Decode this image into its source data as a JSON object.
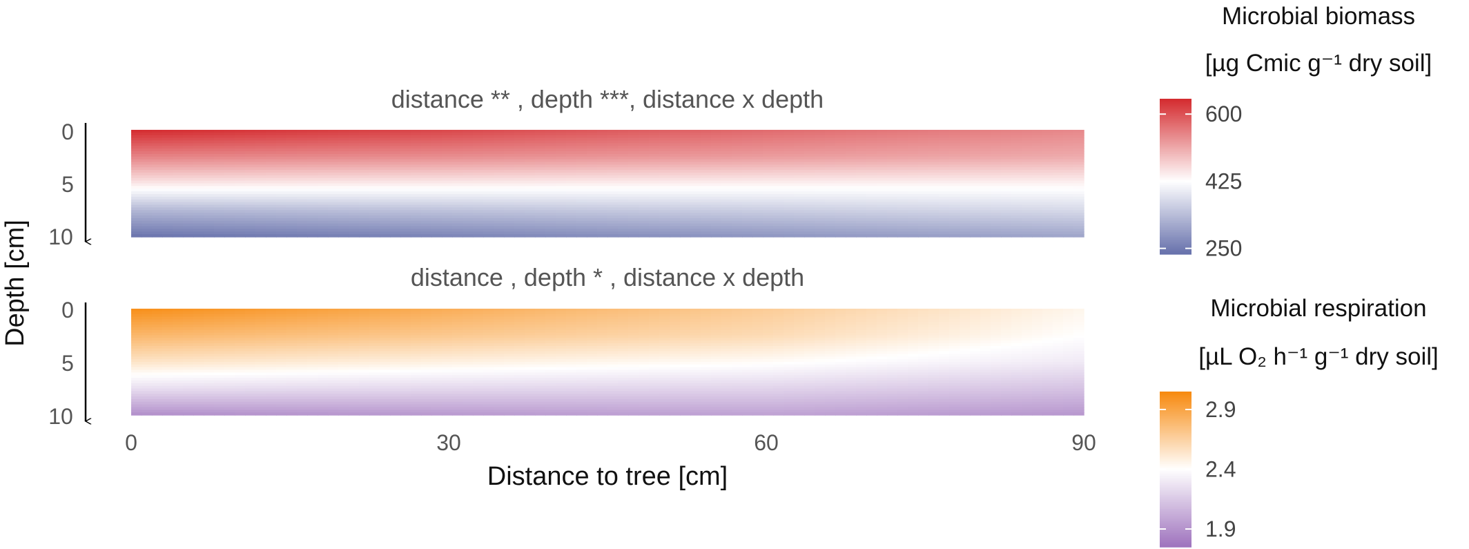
{
  "chart_data": [
    {
      "type": "heatmap",
      "title": "distance ** , depth ***, distance x depth",
      "xlabel": "Distance to tree [cm]",
      "ylabel": "Depth [cm]",
      "xlim": [
        0,
        90
      ],
      "ylim": [
        0,
        10
      ],
      "y_reversed": true,
      "x_ticks": [
        0,
        30,
        60,
        90
      ],
      "y_ticks": [
        0,
        5,
        10
      ],
      "z_name": "Microbial biomass",
      "z_unit": "[µg Cmic g⁻¹ dry soil]",
      "z_ticks": [
        250,
        425,
        600
      ],
      "z_range": [
        235,
        640
      ],
      "colors": {
        "low": "#6670ab",
        "mid": "#ffffff",
        "high": "#d42a2e"
      },
      "surface": {
        "x": [
          0,
          30,
          60,
          90
        ],
        "depth": [
          0,
          2.5,
          5,
          7.5,
          10
        ],
        "z": [
          [
            640,
            550,
            450,
            330,
            240
          ],
          [
            610,
            540,
            445,
            345,
            262
          ],
          [
            575,
            525,
            440,
            360,
            285
          ],
          [
            545,
            510,
            438,
            375,
            305
          ]
        ]
      }
    },
    {
      "type": "heatmap",
      "title": "distance    , depth *   , distance x depth",
      "xlabel": "Distance to tree [cm]",
      "ylabel": "Depth [cm]",
      "xlim": [
        0,
        90
      ],
      "ylim": [
        0,
        10
      ],
      "y_reversed": true,
      "x_ticks": [
        0,
        30,
        60,
        90
      ],
      "y_ticks": [
        0,
        5,
        10
      ],
      "z_name": "Microbial respiration",
      "z_unit": "[µL O₂ h⁻¹ g⁻¹ dry soil]",
      "z_ticks": [
        1.9,
        2.4,
        2.9
      ],
      "z_range": [
        1.75,
        3.05
      ],
      "colors": {
        "low": "#9e72bd",
        "mid": "#ffffff",
        "high": "#f7890d"
      },
      "surface": {
        "x": [
          0,
          30,
          60,
          90
        ],
        "depth": [
          0,
          2.5,
          5,
          7.5,
          10
        ],
        "z": [
          [
            3.02,
            2.8,
            2.55,
            2.25,
            1.88
          ],
          [
            2.85,
            2.7,
            2.48,
            2.22,
            1.93
          ],
          [
            2.68,
            2.6,
            2.42,
            2.2,
            1.97
          ],
          [
            2.45,
            2.4,
            2.3,
            2.12,
            1.92
          ]
        ]
      }
    }
  ]
}
